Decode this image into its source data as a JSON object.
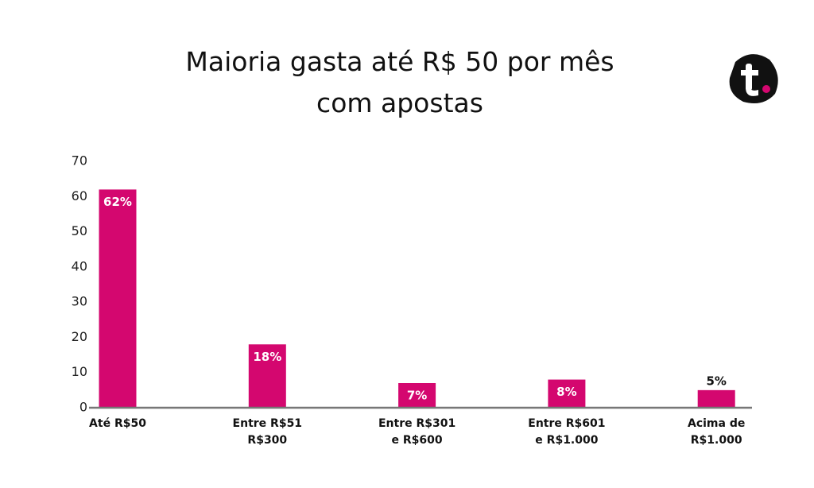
{
  "chart_data": {
    "type": "bar",
    "title": "Maioria gasta até R$ 50 por mês\ncom apostas",
    "categories": [
      "Até R$50",
      "Entre R$51\nR$300",
      "Entre R$301\ne R$600",
      "Entre R$601\ne R$1.000",
      "Acima de\nR$1.000"
    ],
    "values": [
      62,
      18,
      7,
      8,
      5
    ],
    "value_labels": [
      "62%",
      "18%",
      "7%",
      "8%",
      "5%"
    ],
    "color": "#d4076f",
    "ylim": [
      0,
      70
    ],
    "yticks": [
      0,
      10,
      20,
      30,
      40,
      50,
      60,
      70
    ],
    "grid": false
  }
}
